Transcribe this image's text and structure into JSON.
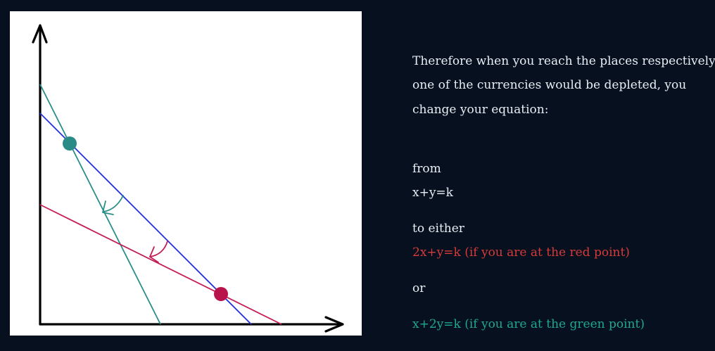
{
  "explanation": {
    "line1": "Therefore when you reach the places respectively",
    "line2": "one of the currencies would be depleted, you",
    "line3": "change your  equation:",
    "from_label": "from",
    "original_equation": "x+y=k",
    "to_label": "to either",
    "red_equation": "2x+y=k (if you are at the red point)",
    "or_label": "or",
    "green_equation": "x+2y=k (if you are at the green point)"
  },
  "colors": {
    "background": "#06101e",
    "text": "#e8eef5",
    "red_line": "#c21f55",
    "green_line": "#2a8f88",
    "blue_line": "#2030e0",
    "red_point": "#b8134a",
    "green_point": "#2a8a86",
    "red_text": "#d63a3a",
    "green_text": "#1fa890"
  }
}
